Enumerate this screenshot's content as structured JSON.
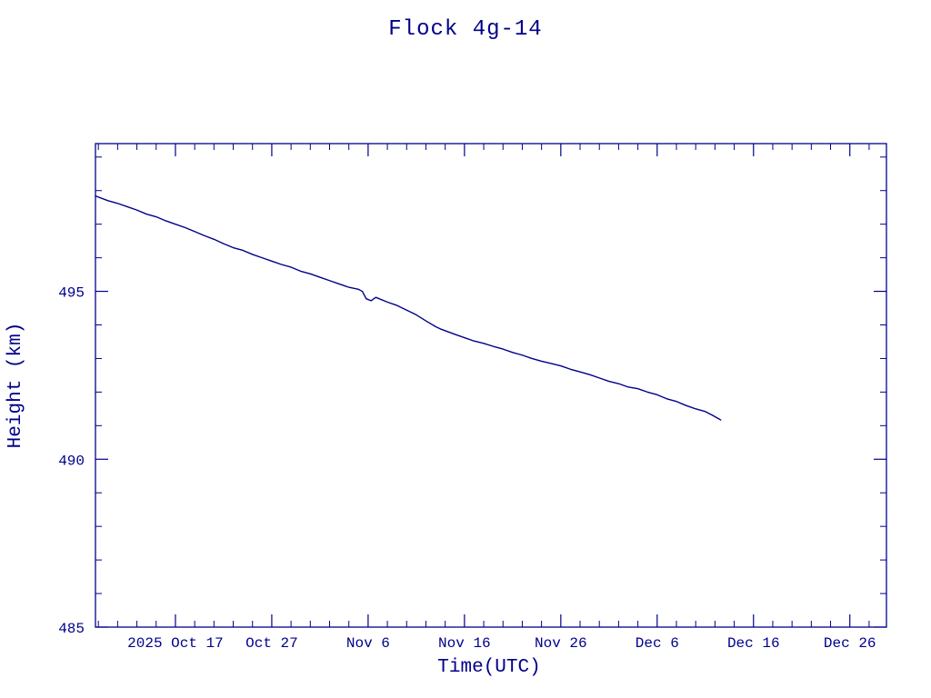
{
  "page": {
    "title": "Flock 4g-14"
  },
  "chart_data": {
    "type": "line",
    "title": "Flock 4g-14",
    "xlabel": "Time(UTC)",
    "ylabel": "Height (km)",
    "line_color": "#00008b",
    "axis_color": "#00008b",
    "background": "#ffffff",
    "legend": "none",
    "grid": false,
    "x_axis": {
      "unit": "days relative to 2025 Oct 17 00:00 UTC",
      "range": [
        -8.3,
        73.8
      ],
      "major_ticks": [
        {
          "pos": 0,
          "label": "2025 Oct 17"
        },
        {
          "pos": 10,
          "label": "Oct 27"
        },
        {
          "pos": 20,
          "label": "Nov 6"
        },
        {
          "pos": 30,
          "label": "Nov 16"
        },
        {
          "pos": 40,
          "label": "Nov 26"
        },
        {
          "pos": 50,
          "label": "Dec 6"
        },
        {
          "pos": 60,
          "label": "Dec 16"
        },
        {
          "pos": 70,
          "label": "Dec 26"
        }
      ],
      "minor_tick_step": 2
    },
    "y_axis": {
      "range": [
        485,
        499.4
      ],
      "major_ticks": [
        {
          "pos": 485,
          "label": "485"
        },
        {
          "pos": 490,
          "label": "490"
        },
        {
          "pos": 495,
          "label": "495"
        }
      ],
      "minor_tick_step": 1
    },
    "series": [
      {
        "name": "height",
        "points": [
          [
            -8.3,
            497.84
          ],
          [
            -7,
            497.7
          ],
          [
            -6,
            497.62
          ],
          [
            -5,
            497.52
          ],
          [
            -4,
            497.42
          ],
          [
            -3,
            497.3
          ],
          [
            -2,
            497.22
          ],
          [
            -1,
            497.1
          ],
          [
            0,
            497.0
          ],
          [
            1,
            496.9
          ],
          [
            2,
            496.78
          ],
          [
            3,
            496.66
          ],
          [
            4,
            496.55
          ],
          [
            5,
            496.42
          ],
          [
            6,
            496.3
          ],
          [
            7,
            496.22
          ],
          [
            8,
            496.1
          ],
          [
            9,
            496.0
          ],
          [
            10,
            495.9
          ],
          [
            11,
            495.8
          ],
          [
            12,
            495.72
          ],
          [
            13,
            495.6
          ],
          [
            14,
            495.52
          ],
          [
            15,
            495.42
          ],
          [
            16,
            495.32
          ],
          [
            17,
            495.22
          ],
          [
            18,
            495.12
          ],
          [
            19,
            495.06
          ],
          [
            19.4,
            495.0
          ],
          [
            19.8,
            494.78
          ],
          [
            20.3,
            494.72
          ],
          [
            20.8,
            494.82
          ],
          [
            22,
            494.68
          ],
          [
            23,
            494.58
          ],
          [
            24,
            494.44
          ],
          [
            25,
            494.3
          ],
          [
            26,
            494.12
          ],
          [
            27,
            493.95
          ],
          [
            27.5,
            493.88
          ],
          [
            29,
            493.72
          ],
          [
            30,
            493.62
          ],
          [
            31,
            493.52
          ],
          [
            32,
            493.45
          ],
          [
            33,
            493.36
          ],
          [
            34,
            493.28
          ],
          [
            35,
            493.18
          ],
          [
            36,
            493.1
          ],
          [
            37,
            493.0
          ],
          [
            38,
            492.92
          ],
          [
            39,
            492.85
          ],
          [
            40,
            492.78
          ],
          [
            41,
            492.68
          ],
          [
            42,
            492.6
          ],
          [
            43,
            492.52
          ],
          [
            44,
            492.42
          ],
          [
            45,
            492.32
          ],
          [
            46,
            492.25
          ],
          [
            47,
            492.15
          ],
          [
            48,
            492.1
          ],
          [
            49,
            492.0
          ],
          [
            50,
            491.92
          ],
          [
            51,
            491.8
          ],
          [
            52,
            491.72
          ],
          [
            53,
            491.6
          ],
          [
            54,
            491.5
          ],
          [
            55,
            491.42
          ],
          [
            55.8,
            491.3
          ],
          [
            56.3,
            491.22
          ],
          [
            56.6,
            491.17
          ]
        ]
      }
    ]
  }
}
